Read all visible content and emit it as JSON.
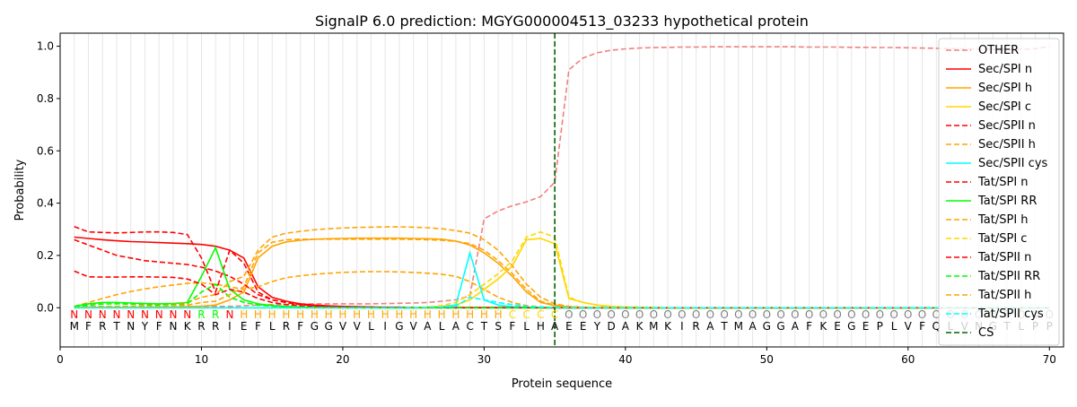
{
  "chart_data": {
    "type": "line",
    "title": "SignalP 6.0 prediction: MGYG000004513_03233 hypothetical protein",
    "xlabel": "Protein sequence",
    "ylabel": "Probability",
    "xlim": [
      0,
      71
    ],
    "ylim": [
      -0.15,
      1.05
    ],
    "xticks": [
      0,
      10,
      20,
      30,
      40,
      50,
      60,
      70
    ],
    "yticks": [
      0.0,
      0.2,
      0.4,
      0.6,
      0.8,
      1.0
    ],
    "grid": "vertical lines at each residue",
    "legend_position": "top-right",
    "sequence": [
      "M",
      "F",
      "R",
      "T",
      "N",
      "Y",
      "F",
      "N",
      "K",
      "R",
      "R",
      "I",
      "E",
      "F",
      "L",
      "R",
      "F",
      "G",
      "G",
      "V",
      "V",
      "L",
      "I",
      "G",
      "V",
      "A",
      "L",
      "A",
      "C",
      "T",
      "S",
      "F",
      "L",
      "H",
      "A",
      "E",
      "E",
      "Y",
      "D",
      "A",
      "K",
      "M",
      "K",
      "I",
      "R",
      "A",
      "T",
      "M",
      "A",
      "G",
      "G",
      "A",
      "F",
      "K",
      "E",
      "G",
      "E",
      "P",
      "L",
      "V",
      "F",
      "Q",
      "L",
      "V",
      "N",
      "G",
      "T",
      "L",
      "P",
      "P"
    ],
    "region_labels": [
      "N",
      "N",
      "N",
      "N",
      "N",
      "N",
      "N",
      "N",
      "N",
      "R",
      "R",
      "N",
      "H",
      "H",
      "H",
      "H",
      "H",
      "H",
      "H",
      "H",
      "H",
      "H",
      "H",
      "H",
      "H",
      "H",
      "H",
      "H",
      "H",
      "H",
      "H",
      "C",
      "C",
      "C",
      "C",
      "O",
      "O",
      "O",
      "O",
      "O",
      "O",
      "O",
      "O",
      "O",
      "O",
      "O",
      "O",
      "O",
      "O",
      "O",
      "O",
      "O",
      "O",
      "O",
      "O",
      "O",
      "O",
      "O",
      "O",
      "O",
      "O",
      "O",
      "O",
      "O",
      "O",
      "O",
      "O",
      "O",
      "O",
      "O"
    ],
    "region_colors": {
      "N": "#ff0000",
      "R": "#00ff00",
      "H": "#ffa500",
      "C": "#ffd700",
      "O": "#808080"
    },
    "cleavage_site": 35,
    "series": [
      {
        "name": "OTHER",
        "color": "#f08080",
        "dash": "dashed",
        "values": [
          0.005,
          0.005,
          0.005,
          0.005,
          0.005,
          0.005,
          0.005,
          0.005,
          0.005,
          0.005,
          0.005,
          0.005,
          0.007,
          0.01,
          0.012,
          0.013,
          0.014,
          0.015,
          0.015,
          0.015,
          0.015,
          0.015,
          0.016,
          0.017,
          0.018,
          0.02,
          0.025,
          0.03,
          0.045,
          0.34,
          0.37,
          0.39,
          0.405,
          0.425,
          0.48,
          0.91,
          0.955,
          0.975,
          0.985,
          0.99,
          0.993,
          0.995,
          0.996,
          0.997,
          0.997,
          0.998,
          0.998,
          0.998,
          0.998,
          0.998,
          0.998,
          0.998,
          0.997,
          0.997,
          0.997,
          0.996,
          0.996,
          0.995,
          0.995,
          0.994,
          0.993,
          0.992,
          0.991,
          0.99,
          0.99,
          0.989,
          0.988,
          0.988,
          0.99,
          1.0
        ]
      },
      {
        "name": "Sec/SPI n",
        "color": "#ff0000",
        "dash": "solid",
        "values": [
          0.27,
          0.265,
          0.26,
          0.256,
          0.253,
          0.251,
          0.249,
          0.247,
          0.245,
          0.242,
          0.235,
          0.22,
          0.19,
          0.08,
          0.04,
          0.025,
          0.015,
          0.01,
          0.007,
          0.005,
          0.004,
          0.003,
          0.002,
          0.002,
          0.001,
          0.001,
          0.001,
          0.001,
          0.001,
          0.001,
          0.001,
          0.001,
          0.001,
          0.001,
          0.001,
          0,
          0,
          0,
          0,
          0,
          0,
          0,
          0,
          0,
          0,
          0,
          0,
          0,
          0,
          0,
          0,
          0,
          0,
          0,
          0,
          0,
          0,
          0,
          0,
          0,
          0,
          0,
          0,
          0,
          0,
          0,
          0,
          0,
          0,
          0
        ]
      },
      {
        "name": "Sec/SPI h",
        "color": "#ffa500",
        "dash": "solid",
        "values": [
          0.002,
          0.002,
          0.002,
          0.002,
          0.002,
          0.002,
          0.003,
          0.003,
          0.004,
          0.006,
          0.01,
          0.03,
          0.06,
          0.19,
          0.235,
          0.252,
          0.258,
          0.262,
          0.264,
          0.265,
          0.266,
          0.266,
          0.266,
          0.266,
          0.265,
          0.264,
          0.262,
          0.255,
          0.24,
          0.21,
          0.17,
          0.12,
          0.06,
          0.02,
          0.008,
          0.003,
          0.002,
          0.001,
          0.001,
          0.001,
          0,
          0,
          0,
          0,
          0,
          0,
          0,
          0,
          0,
          0,
          0,
          0,
          0,
          0,
          0,
          0,
          0,
          0,
          0,
          0,
          0,
          0,
          0,
          0,
          0,
          0,
          0,
          0,
          0,
          0
        ]
      },
      {
        "name": "Sec/SPI c",
        "color": "#ffd700",
        "dash": "solid",
        "values": [
          0,
          0,
          0,
          0,
          0,
          0,
          0,
          0,
          0,
          0,
          0,
          0,
          0,
          0,
          0,
          0,
          0,
          0,
          0,
          0,
          0,
          0,
          0,
          0,
          0.001,
          0.002,
          0.005,
          0.01,
          0.03,
          0.07,
          0.11,
          0.16,
          0.26,
          0.265,
          0.245,
          0.035,
          0.02,
          0.01,
          0.005,
          0.003,
          0.002,
          0.001,
          0,
          0,
          0,
          0,
          0,
          0,
          0,
          0,
          0,
          0,
          0,
          0,
          0,
          0,
          0,
          0,
          0,
          0,
          0,
          0,
          0,
          0,
          0,
          0,
          0,
          0,
          0,
          0
        ]
      },
      {
        "name": "Sec/SPII n",
        "color": "#ff0000",
        "dash": "dashed",
        "values": [
          0.26,
          0.24,
          0.22,
          0.2,
          0.19,
          0.18,
          0.175,
          0.17,
          0.165,
          0.155,
          0.14,
          0.12,
          0.09,
          0.05,
          0.03,
          0.02,
          0.012,
          0.008,
          0.005,
          0.003,
          0.002,
          0.002,
          0.001,
          0.001,
          0.001,
          0.001,
          0.001,
          0.001,
          0.001,
          0.001,
          0.001,
          0.001,
          0.001,
          0,
          0,
          0,
          0,
          0,
          0,
          0,
          0,
          0,
          0,
          0,
          0,
          0,
          0,
          0,
          0,
          0,
          0,
          0,
          0,
          0,
          0,
          0,
          0,
          0,
          0,
          0,
          0,
          0,
          0,
          0,
          0,
          0,
          0,
          0,
          0,
          0
        ]
      },
      {
        "name": "Sec/SPII h",
        "color": "#ffa500",
        "dash": "dashed",
        "values": [
          0.005,
          0.02,
          0.035,
          0.05,
          0.062,
          0.072,
          0.08,
          0.087,
          0.093,
          0.095,
          0.09,
          0.08,
          0.07,
          0.08,
          0.1,
          0.115,
          0.122,
          0.128,
          0.132,
          0.135,
          0.137,
          0.138,
          0.138,
          0.137,
          0.135,
          0.132,
          0.128,
          0.12,
          0.1,
          0.07,
          0.04,
          0.02,
          0.008,
          0.003,
          0.001,
          0,
          0,
          0,
          0,
          0,
          0,
          0,
          0,
          0,
          0,
          0,
          0,
          0,
          0,
          0,
          0,
          0,
          0,
          0,
          0,
          0,
          0,
          0,
          0,
          0,
          0,
          0,
          0,
          0,
          0,
          0,
          0,
          0,
          0,
          0
        ]
      },
      {
        "name": "Sec/SPII cys",
        "color": "#00ffff",
        "dash": "solid",
        "values": [
          0,
          0,
          0,
          0,
          0,
          0,
          0,
          0,
          0,
          0,
          0,
          0,
          0,
          0,
          0,
          0,
          0,
          0,
          0,
          0,
          0,
          0,
          0,
          0,
          0,
          0.001,
          0.003,
          0.01,
          0.21,
          0.03,
          0.01,
          0.004,
          0.002,
          0.001,
          0.001,
          0,
          0,
          0,
          0,
          0,
          0,
          0,
          0,
          0,
          0,
          0,
          0,
          0,
          0,
          0,
          0,
          0,
          0,
          0,
          0,
          0,
          0,
          0,
          0,
          0,
          0,
          0,
          0,
          0,
          0,
          0,
          0,
          0,
          0,
          0
        ]
      },
      {
        "name": "Tat/SPI n",
        "color": "#ff0000",
        "dash": "dashed",
        "values": [
          0.31,
          0.29,
          0.288,
          0.286,
          0.288,
          0.29,
          0.29,
          0.288,
          0.28,
          0.19,
          0.06,
          0.22,
          0.17,
          0.06,
          0.03,
          0.02,
          0.012,
          0.008,
          0.005,
          0.003,
          0.002,
          0.002,
          0.001,
          0.001,
          0.001,
          0.001,
          0.001,
          0.001,
          0.001,
          0.001,
          0.001,
          0.001,
          0.001,
          0,
          0,
          0,
          0,
          0,
          0,
          0,
          0,
          0,
          0,
          0,
          0,
          0,
          0,
          0,
          0,
          0,
          0,
          0,
          0,
          0,
          0,
          0,
          0,
          0,
          0,
          0,
          0,
          0,
          0,
          0,
          0,
          0,
          0,
          0,
          0,
          0
        ]
      },
      {
        "name": "Tat/SPI RR",
        "color": "#00ff00",
        "dash": "solid",
        "values": [
          0.005,
          0.015,
          0.02,
          0.02,
          0.018,
          0.016,
          0.015,
          0.016,
          0.02,
          0.12,
          0.23,
          0.07,
          0.03,
          0.015,
          0.008,
          0.005,
          0.003,
          0.002,
          0.001,
          0.001,
          0.001,
          0,
          0,
          0,
          0,
          0,
          0,
          0,
          0,
          0,
          0,
          0,
          0,
          0,
          0,
          0,
          0,
          0,
          0,
          0,
          0,
          0,
          0,
          0,
          0,
          0,
          0,
          0,
          0,
          0,
          0,
          0,
          0,
          0,
          0,
          0,
          0,
          0,
          0,
          0,
          0,
          0,
          0,
          0,
          0,
          0,
          0,
          0,
          0,
          0
        ]
      },
      {
        "name": "Tat/SPI h",
        "color": "#ffa500",
        "dash": "dashed",
        "values": [
          0.002,
          0.003,
          0.004,
          0.005,
          0.006,
          0.008,
          0.01,
          0.014,
          0.02,
          0.04,
          0.05,
          0.1,
          0.12,
          0.22,
          0.27,
          0.285,
          0.292,
          0.298,
          0.302,
          0.305,
          0.307,
          0.308,
          0.309,
          0.309,
          0.308,
          0.306,
          0.302,
          0.295,
          0.285,
          0.26,
          0.22,
          0.16,
          0.09,
          0.04,
          0.015,
          0.005,
          0.002,
          0.001,
          0,
          0,
          0,
          0,
          0,
          0,
          0,
          0,
          0,
          0,
          0,
          0,
          0,
          0,
          0,
          0,
          0,
          0,
          0,
          0,
          0,
          0,
          0,
          0,
          0,
          0,
          0,
          0,
          0,
          0,
          0,
          0
        ]
      },
      {
        "name": "Tat/SPI c",
        "color": "#ffd700",
        "dash": "dashed",
        "values": [
          0,
          0,
          0,
          0,
          0,
          0,
          0,
          0,
          0,
          0,
          0,
          0,
          0,
          0,
          0,
          0,
          0,
          0,
          0,
          0,
          0,
          0,
          0,
          0,
          0.001,
          0.003,
          0.008,
          0.02,
          0.05,
          0.09,
          0.13,
          0.18,
          0.27,
          0.29,
          0.27,
          0.04,
          0.02,
          0.01,
          0.005,
          0.003,
          0.002,
          0.001,
          0,
          0,
          0,
          0,
          0,
          0,
          0,
          0,
          0,
          0,
          0,
          0,
          0,
          0,
          0,
          0,
          0,
          0,
          0,
          0,
          0,
          0,
          0,
          0,
          0,
          0,
          0,
          0
        ]
      },
      {
        "name": "Tat/SPII n",
        "color": "#ff0000",
        "dash": "dashed",
        "values": [
          0.14,
          0.118,
          0.117,
          0.117,
          0.118,
          0.118,
          0.117,
          0.116,
          0.11,
          0.09,
          0.05,
          0.07,
          0.06,
          0.035,
          0.02,
          0.012,
          0.008,
          0.005,
          0.003,
          0.002,
          0.001,
          0.001,
          0.001,
          0,
          0,
          0,
          0,
          0,
          0,
          0,
          0,
          0,
          0,
          0,
          0,
          0,
          0,
          0,
          0,
          0,
          0,
          0,
          0,
          0,
          0,
          0,
          0,
          0,
          0,
          0,
          0,
          0,
          0,
          0,
          0,
          0,
          0,
          0,
          0,
          0,
          0,
          0,
          0,
          0,
          0,
          0,
          0,
          0,
          0,
          0
        ]
      },
      {
        "name": "Tat/SPII RR",
        "color": "#00ff00",
        "dash": "dashed",
        "values": [
          0.003,
          0.01,
          0.014,
          0.015,
          0.014,
          0.013,
          0.012,
          0.013,
          0.015,
          0.06,
          0.09,
          0.04,
          0.02,
          0.01,
          0.006,
          0.004,
          0.002,
          0.001,
          0.001,
          0,
          0,
          0,
          0,
          0,
          0,
          0,
          0,
          0,
          0,
          0,
          0,
          0,
          0,
          0,
          0,
          0,
          0,
          0,
          0,
          0,
          0,
          0,
          0,
          0,
          0,
          0,
          0,
          0,
          0,
          0,
          0,
          0,
          0,
          0,
          0,
          0,
          0,
          0,
          0,
          0,
          0,
          0,
          0,
          0,
          0,
          0,
          0,
          0,
          0,
          0
        ]
      },
      {
        "name": "Tat/SPII h",
        "color": "#ffa500",
        "dash": "dashed",
        "values": [
          0.001,
          0.002,
          0.002,
          0.003,
          0.003,
          0.004,
          0.005,
          0.007,
          0.01,
          0.02,
          0.025,
          0.05,
          0.08,
          0.21,
          0.25,
          0.26,
          0.262,
          0.262,
          0.262,
          0.262,
          0.262,
          0.262,
          0.262,
          0.262,
          0.261,
          0.26,
          0.258,
          0.254,
          0.245,
          0.22,
          0.18,
          0.13,
          0.07,
          0.025,
          0.01,
          0.003,
          0.001,
          0,
          0,
          0,
          0,
          0,
          0,
          0,
          0,
          0,
          0,
          0,
          0,
          0,
          0,
          0,
          0,
          0,
          0,
          0,
          0,
          0,
          0,
          0,
          0,
          0,
          0,
          0,
          0,
          0,
          0,
          0,
          0,
          0
        ]
      },
      {
        "name": "Tat/SPII cys",
        "color": "#00ffff",
        "dash": "dashed",
        "values": [
          0,
          0,
          0,
          0,
          0,
          0,
          0,
          0,
          0,
          0,
          0,
          0,
          0,
          0,
          0,
          0,
          0,
          0,
          0,
          0,
          0,
          0,
          0,
          0,
          0,
          0.001,
          0.002,
          0.005,
          0.04,
          0.03,
          0.02,
          0.012,
          0.006,
          0.003,
          0.001,
          0,
          0,
          0,
          0,
          0,
          0,
          0,
          0,
          0,
          0,
          0,
          0,
          0,
          0,
          0,
          0,
          0,
          0,
          0,
          0,
          0,
          0,
          0,
          0,
          0,
          0,
          0,
          0,
          0,
          0,
          0,
          0,
          0,
          0,
          0
        ]
      },
      {
        "name": "CS",
        "color": "#006400",
        "dash": "dashed",
        "values": []
      }
    ]
  }
}
